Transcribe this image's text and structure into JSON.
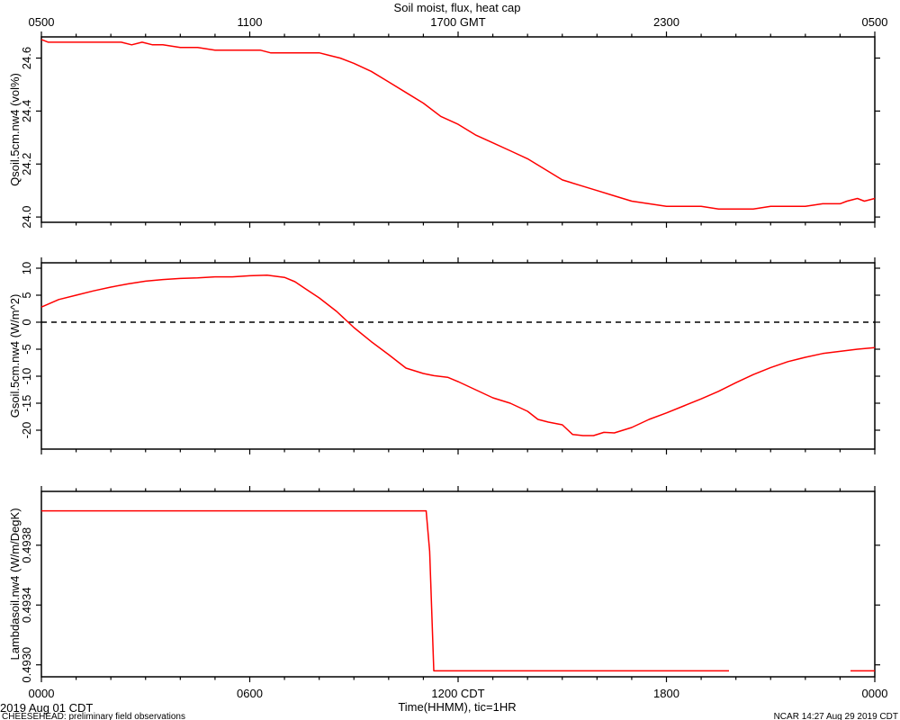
{
  "title": "Soil moist, flux, heat cap",
  "top_axis": {
    "ticks": [
      "0500",
      "1100",
      "1700 GMT",
      "2300",
      "0500"
    ]
  },
  "bottom_axis": {
    "ticks": [
      "0000",
      "0600",
      "1200 CDT",
      "1800",
      "0000"
    ],
    "xlabel": "Time(HHMM), tic=1HR",
    "date_label": "2019 Aug 01 CDT"
  },
  "footer": {
    "left": "CHEESEHEAD: preliminary field observations",
    "right": "NCAR 14:27 Aug 29 2019 CDT"
  },
  "colors": {
    "series": "#ff0000",
    "axes": "#000000",
    "zero_line": "#000000"
  },
  "chart_data": [
    {
      "type": "line",
      "ylabel": "Qsoil.5cm.nw4 (vol%)",
      "x_unit": "hours CDT",
      "xlim": [
        0,
        24
      ],
      "ylim": [
        23.98,
        24.68
      ],
      "yticks": [
        24.0,
        24.2,
        24.4,
        24.6
      ],
      "ytick_labels": [
        "24.0",
        "24.2",
        "24.4",
        "24.6"
      ],
      "grid": false,
      "series": [
        {
          "x": [
            0,
            0.2,
            0.5,
            1,
            2,
            2.3,
            2.6,
            2.9,
            3.2,
            3.5,
            4,
            4.5,
            5,
            5.5,
            6,
            6.3,
            6.6,
            7,
            7.5,
            8,
            8.3,
            8.6,
            9,
            9.5,
            10,
            10.5,
            11,
            11.5,
            12,
            12.5,
            13,
            13.5,
            14,
            14.5,
            15,
            15.5,
            16,
            16.5,
            17,
            17.5,
            18,
            18.5,
            19,
            19.5,
            20,
            20.5,
            21,
            21.5,
            22,
            22.5,
            23,
            23.2,
            23.5,
            23.7,
            24
          ],
          "y": [
            24.67,
            24.66,
            24.66,
            24.66,
            24.66,
            24.66,
            24.65,
            24.66,
            24.65,
            24.65,
            24.64,
            24.64,
            24.63,
            24.63,
            24.63,
            24.63,
            24.62,
            24.62,
            24.62,
            24.62,
            24.61,
            24.6,
            24.58,
            24.55,
            24.51,
            24.47,
            24.43,
            24.38,
            24.35,
            24.31,
            24.28,
            24.25,
            24.22,
            24.18,
            24.14,
            24.12,
            24.1,
            24.08,
            24.06,
            24.05,
            24.04,
            24.04,
            24.04,
            24.03,
            24.03,
            24.03,
            24.04,
            24.04,
            24.04,
            24.05,
            24.05,
            24.06,
            24.07,
            24.06,
            24.07
          ]
        }
      ]
    },
    {
      "type": "line",
      "ylabel": "Gsoil.5cm.nw4 (W/m^2)",
      "x_unit": "hours CDT",
      "xlim": [
        0,
        24
      ],
      "ylim": [
        -23.5,
        11
      ],
      "yticks": [
        -20,
        -15,
        -10,
        -5,
        0,
        5,
        10
      ],
      "ytick_labels": [
        "-20",
        "-15",
        "-10",
        "-5",
        "0",
        "5",
        "10"
      ],
      "zero_line": true,
      "grid": false,
      "series": [
        {
          "x": [
            0,
            0.5,
            1,
            1.5,
            2,
            2.5,
            3,
            3.5,
            4,
            4.5,
            5,
            5.5,
            6,
            6.5,
            7,
            7.3,
            7.6,
            8,
            8.5,
            9,
            9.5,
            10,
            10.5,
            11,
            11.3,
            11.7,
            12,
            12.5,
            13,
            13.5,
            14,
            14.3,
            14.6,
            15,
            15.3,
            15.6,
            15.9,
            16.2,
            16.5,
            17,
            17.5,
            18,
            18.5,
            19,
            19.5,
            20,
            20.5,
            21,
            21.5,
            22,
            22.5,
            23,
            23.5,
            24
          ],
          "y": [
            2.8,
            4.2,
            5.0,
            5.8,
            6.5,
            7.1,
            7.6,
            7.9,
            8.1,
            8.2,
            8.4,
            8.4,
            8.6,
            8.7,
            8.3,
            7.5,
            6.2,
            4.5,
            2.0,
            -1.0,
            -3.6,
            -6.0,
            -8.5,
            -9.5,
            -9.9,
            -10.2,
            -11.0,
            -12.5,
            -14.0,
            -15.0,
            -16.5,
            -18.0,
            -18.5,
            -19.0,
            -20.8,
            -21.0,
            -21.0,
            -20.4,
            -20.5,
            -19.5,
            -18.0,
            -16.8,
            -15.5,
            -14.2,
            -12.8,
            -11.2,
            -9.7,
            -8.4,
            -7.3,
            -6.5,
            -5.8,
            -5.4,
            -5.0,
            -4.7
          ]
        }
      ]
    },
    {
      "type": "line",
      "ylabel": "Lambdasoil.nw4 (W/m/DegK)",
      "x_unit": "hours CDT",
      "xlim": [
        0,
        24
      ],
      "ylim": [
        0.49292,
        0.49416
      ],
      "yticks": [
        0.493,
        0.4934,
        0.4938
      ],
      "ytick_labels": [
        "0.4930",
        "0.4934",
        "0.4938"
      ],
      "grid": false,
      "series": [
        {
          "segments": [
            {
              "x": [
                0,
                11.08,
                11.18,
                11.3,
                19.8
              ],
              "y": [
                0.49403,
                0.49403,
                0.49376,
                0.49296,
                0.49296
              ]
            },
            {
              "x": [
                23.3,
                24
              ],
              "y": [
                0.49296,
                0.49296
              ]
            }
          ]
        }
      ]
    }
  ]
}
